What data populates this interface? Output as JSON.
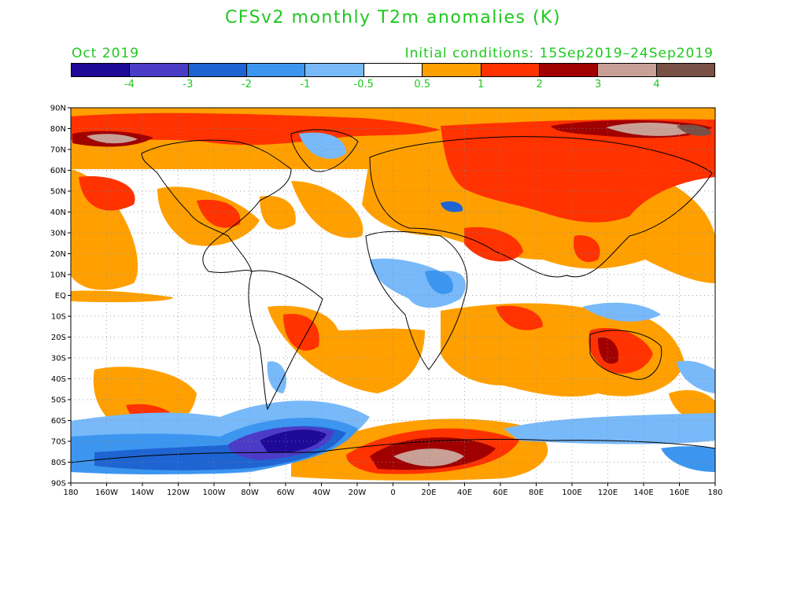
{
  "title": "CFSv2 monthly T2m anomalies (K)",
  "valid_month": "Oct 2019",
  "initial_conditions": "Initial conditions: 15Sep2019–24Sep2019",
  "colorbar": {
    "colors": [
      "#1e0a96",
      "#4b3cc8",
      "#1e64d2",
      "#3c96f0",
      "#78b9fa",
      "#ffffff",
      "#ffa000",
      "#ff3200",
      "#a00000",
      "#c8a096",
      "#785046"
    ],
    "labels": [
      "-4",
      "-3",
      "-2",
      "-1",
      "-0.5",
      "0.5",
      "1",
      "2",
      "3",
      "4"
    ]
  },
  "axes": {
    "lat_labels": [
      "90N",
      "80N",
      "70N",
      "60N",
      "50N",
      "40N",
      "30N",
      "20N",
      "10N",
      "EQ",
      "10S",
      "20S",
      "30S",
      "40S",
      "50S",
      "60S",
      "70S",
      "80S",
      "90S"
    ],
    "lon_labels": [
      "180",
      "160W",
      "140W",
      "120W",
      "100W",
      "80W",
      "60W",
      "40W",
      "20W",
      "0",
      "20E",
      "40E",
      "60E",
      "80E",
      "100E",
      "120E",
      "140E",
      "160E",
      "180"
    ]
  },
  "map": {
    "projection": "Plate Carree",
    "lon_range": [
      -180,
      180
    ],
    "lat_range": [
      -90,
      90
    ],
    "grid": "dotted, every 20° lon and 10° lat"
  }
}
